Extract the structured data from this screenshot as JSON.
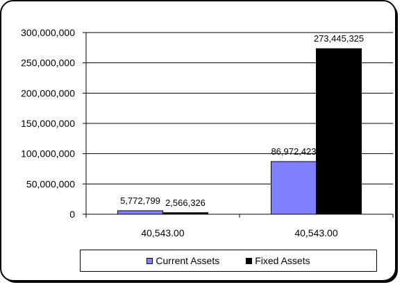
{
  "chart_data": {
    "type": "bar",
    "categories": [
      "40,543.00",
      "40,543.00"
    ],
    "series": [
      {
        "name": "Current Assets",
        "values": [
          5772799,
          86972423
        ],
        "labels": [
          "5,772,799",
          "86,972,423"
        ],
        "color": "#8080ff"
      },
      {
        "name": "Fixed Assets",
        "values": [
          2566326,
          273445325
        ],
        "labels": [
          "2,566,326",
          "273,445,325"
        ],
        "color": "#000000"
      }
    ],
    "ylim": [
      0,
      300000000
    ],
    "yticks": [
      "0",
      "50,000,000",
      "100,000,000",
      "150,000,000",
      "200,000,000",
      "250,000,000",
      "300,000,000"
    ],
    "grid": true,
    "legend_position": "bottom"
  }
}
